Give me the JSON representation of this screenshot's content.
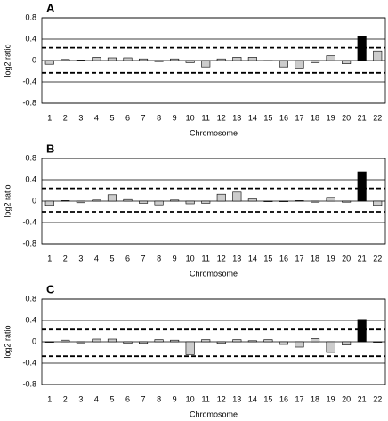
{
  "chart_data": [
    {
      "type": "bar",
      "title": "A",
      "xlabel": "Chromosome",
      "ylabel": "log2 ratio",
      "categories": [
        "1",
        "2",
        "3",
        "4",
        "5",
        "6",
        "7",
        "8",
        "9",
        "10",
        "11",
        "12",
        "13",
        "14",
        "15",
        "16",
        "17",
        "18",
        "19",
        "20",
        "21",
        "22"
      ],
      "values": [
        -0.07,
        0.02,
        0.01,
        0.06,
        0.05,
        0.05,
        0.03,
        -0.02,
        0.03,
        -0.04,
        -0.12,
        0.03,
        0.06,
        0.06,
        -0.01,
        -0.12,
        -0.14,
        -0.04,
        0.09,
        -0.06,
        0.46,
        0.18
      ],
      "colors": [
        "#cccccc",
        "#cccccc",
        "#cccccc",
        "#cccccc",
        "#cccccc",
        "#cccccc",
        "#cccccc",
        "#cccccc",
        "#cccccc",
        "#cccccc",
        "#cccccc",
        "#cccccc",
        "#cccccc",
        "#cccccc",
        "#cccccc",
        "#cccccc",
        "#cccccc",
        "#cccccc",
        "#cccccc",
        "#cccccc",
        "#000000",
        "#cccccc"
      ],
      "reference_lines": [
        0.24,
        -0.23
      ],
      "ylim": [
        -0.8,
        0.8
      ],
      "yticks": [
        0.8,
        0.4,
        0,
        -0.4,
        -0.8
      ],
      "grid": true
    },
    {
      "type": "bar",
      "title": "B",
      "xlabel": "Chromosome",
      "ylabel": "log2 ratio",
      "categories": [
        "1",
        "2",
        "3",
        "4",
        "5",
        "6",
        "7",
        "8",
        "9",
        "10",
        "11",
        "12",
        "13",
        "14",
        "15",
        "16",
        "17",
        "18",
        "19",
        "20",
        "21",
        "22"
      ],
      "values": [
        -0.08,
        0.01,
        -0.03,
        0.02,
        0.12,
        0.03,
        -0.04,
        -0.07,
        0.02,
        -0.05,
        -0.04,
        0.13,
        0.17,
        0.04,
        -0.01,
        -0.01,
        0.01,
        -0.02,
        0.07,
        -0.02,
        0.55,
        -0.08
      ],
      "colors": [
        "#cccccc",
        "#cccccc",
        "#cccccc",
        "#cccccc",
        "#cccccc",
        "#cccccc",
        "#cccccc",
        "#cccccc",
        "#cccccc",
        "#cccccc",
        "#cccccc",
        "#cccccc",
        "#cccccc",
        "#cccccc",
        "#cccccc",
        "#cccccc",
        "#cccccc",
        "#cccccc",
        "#cccccc",
        "#cccccc",
        "#000000",
        "#cccccc"
      ],
      "reference_lines": [
        0.24,
        -0.2
      ],
      "ylim": [
        -0.8,
        0.8
      ],
      "yticks": [
        0.8,
        0.4,
        0,
        -0.4,
        -0.8
      ],
      "grid": true
    },
    {
      "type": "bar",
      "title": "C",
      "xlabel": "Chromosome",
      "ylabel": "log2 ratio",
      "categories": [
        "1",
        "2",
        "3",
        "4",
        "5",
        "6",
        "7",
        "8",
        "9",
        "10",
        "11",
        "12",
        "13",
        "14",
        "15",
        "16",
        "17",
        "18",
        "19",
        "20",
        "21",
        "22"
      ],
      "values": [
        -0.01,
        0.03,
        -0.02,
        0.05,
        0.05,
        -0.03,
        -0.03,
        0.04,
        0.03,
        -0.24,
        0.04,
        -0.03,
        0.04,
        0.02,
        0.04,
        -0.05,
        -0.1,
        0.06,
        -0.2,
        -0.06,
        0.42,
        -0.01
      ],
      "colors": [
        "#cccccc",
        "#cccccc",
        "#cccccc",
        "#cccccc",
        "#cccccc",
        "#cccccc",
        "#cccccc",
        "#cccccc",
        "#cccccc",
        "#cccccc",
        "#cccccc",
        "#cccccc",
        "#cccccc",
        "#cccccc",
        "#cccccc",
        "#cccccc",
        "#cccccc",
        "#cccccc",
        "#cccccc",
        "#cccccc",
        "#000000",
        "#cccccc"
      ],
      "reference_lines": [
        0.23,
        -0.27
      ],
      "ylim": [
        -0.8,
        0.8
      ],
      "yticks": [
        0.8,
        0.4,
        0,
        -0.4,
        -0.8
      ],
      "grid": true
    }
  ]
}
